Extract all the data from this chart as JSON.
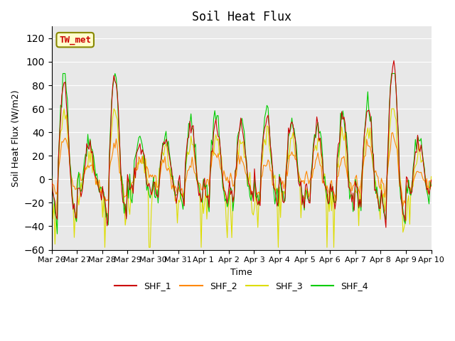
{
  "title": "Soil Heat Flux",
  "xlabel": "Time",
  "ylabel": "Soil Heat Flux (W/m2)",
  "ylim": [
    -60,
    130
  ],
  "yticks": [
    -60,
    -40,
    -20,
    0,
    20,
    40,
    60,
    80,
    100,
    120
  ],
  "background_color": "#ffffff",
  "plot_bg_color": "#e8e8e8",
  "legend_labels": [
    "SHF_1",
    "SHF_2",
    "SHF_3",
    "SHF_4"
  ],
  "line_colors": [
    "#cc0000",
    "#ff8800",
    "#dddd00",
    "#00cc00"
  ],
  "annotation_text": "TW_met",
  "annotation_color": "#cc0000",
  "annotation_bg": "#ffffcc",
  "xtick_labels": [
    "Mar 26",
    "Mar 27",
    "Mar 28",
    "Mar 29",
    "Mar 30",
    "Mar 31",
    "Apr 1",
    "Apr 2",
    "Apr 3",
    "Apr 4",
    "Apr 5",
    "Apr 6",
    "Apr 7",
    "Apr 8",
    "Apr 9",
    "Apr 10"
  ],
  "n_points": 336,
  "seed": 42
}
